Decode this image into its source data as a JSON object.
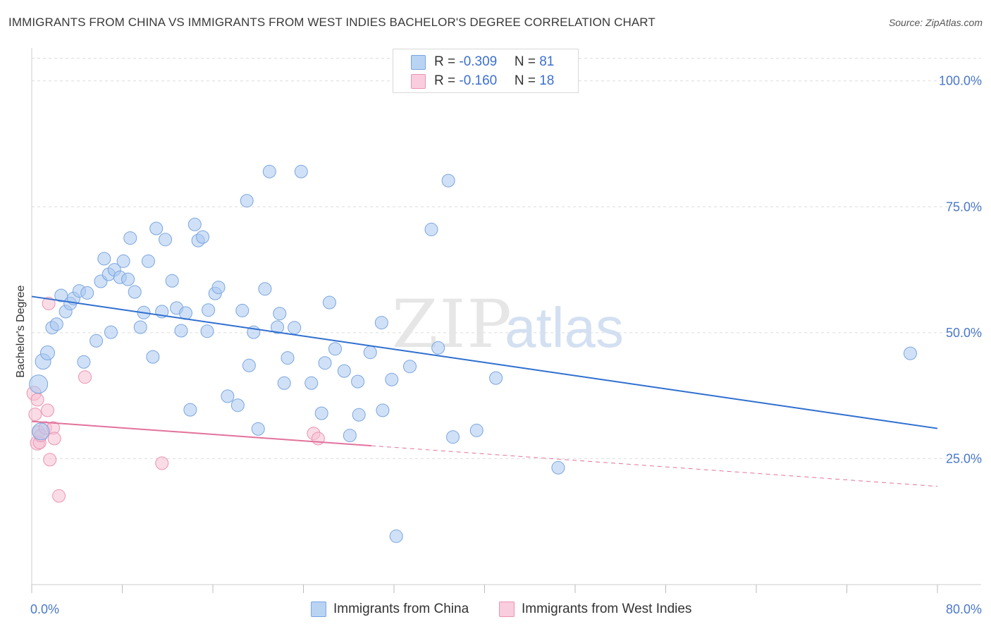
{
  "title": "IMMIGRANTS FROM CHINA VS IMMIGRANTS FROM WEST INDIES BACHELOR'S DEGREE CORRELATION CHART",
  "source": "Source: ZipAtlas.com",
  "watermark": {
    "zip": "ZIP",
    "atlas": "atlas"
  },
  "legend": {
    "china": {
      "r_label": "R = ",
      "r_value": "-0.309",
      "n_label": "N = ",
      "n_value": "81"
    },
    "westindies": {
      "r_label": "R = ",
      "r_value": "-0.160",
      "n_label": "N = ",
      "n_value": "18"
    }
  },
  "bottom_legend": {
    "china": "Immigrants from China",
    "westindies": "Immigrants from West Indies"
  },
  "colors": {
    "china_fill": "#a9c8f0",
    "china_stroke": "#7aa5e0",
    "china_line": "#2f6fd0",
    "westindies_fill": "#f6bfd2",
    "westindies_stroke": "#ec93b3",
    "westindies_line": "#e2729d",
    "tick_text": "#4a78c9",
    "grid": "#dcdcdc"
  },
  "chart_data": {
    "type": "scatter",
    "title": "IMMIGRANTS FROM CHINA VS IMMIGRANTS FROM WEST INDIES BACHELOR'S DEGREE CORRELATION CHART",
    "xlabel": "",
    "ylabel": "Bachelor's Degree",
    "xlim": [
      0,
      80
    ],
    "ylim": [
      0,
      105
    ],
    "x_tick_labels": [
      "0.0%",
      "80.0%"
    ],
    "y_ticks": [
      25,
      50,
      75,
      100
    ],
    "y_tick_labels": [
      "25.0%",
      "50.0%",
      "75.0%",
      "100.0%"
    ],
    "grid": true,
    "legend_position": "top-center",
    "series": [
      {
        "name": "Immigrants from China",
        "r": -0.309,
        "n": 81,
        "trend": {
          "x": [
            0,
            80
          ],
          "y": [
            57.2,
            31.0
          ],
          "dashed_from": null
        },
        "points": [
          [
            0.6,
            39.8,
            13
          ],
          [
            0.8,
            30.4,
            12
          ],
          [
            1.0,
            44.3,
            11
          ],
          [
            1.4,
            46.0,
            10
          ],
          [
            1.8,
            51.0,
            9
          ],
          [
            2.2,
            51.7,
            9
          ],
          [
            2.6,
            57.4,
            9
          ],
          [
            3.0,
            54.2,
            9
          ],
          [
            3.4,
            55.8,
            9
          ],
          [
            3.7,
            56.8,
            9
          ],
          [
            4.2,
            58.3,
            9
          ],
          [
            4.6,
            44.2,
            9
          ],
          [
            4.9,
            57.9,
            9
          ],
          [
            5.7,
            48.4,
            9
          ],
          [
            6.1,
            60.2,
            9
          ],
          [
            6.4,
            64.7,
            9
          ],
          [
            6.8,
            61.6,
            9
          ],
          [
            7.0,
            50.1,
            9
          ],
          [
            7.3,
            62.5,
            9
          ],
          [
            7.8,
            61.0,
            9
          ],
          [
            8.1,
            64.2,
            9
          ],
          [
            8.5,
            60.6,
            9
          ],
          [
            8.7,
            68.8,
            9
          ],
          [
            9.1,
            58.1,
            9
          ],
          [
            9.6,
            51.1,
            9
          ],
          [
            9.9,
            54.0,
            9
          ],
          [
            10.3,
            64.2,
            9
          ],
          [
            10.7,
            45.2,
            9
          ],
          [
            11.0,
            70.7,
            9
          ],
          [
            11.5,
            54.2,
            9
          ],
          [
            11.8,
            68.5,
            9
          ],
          [
            12.4,
            60.3,
            9
          ],
          [
            12.8,
            54.9,
            9
          ],
          [
            13.2,
            50.4,
            9
          ],
          [
            13.6,
            53.9,
            9
          ],
          [
            14.0,
            34.7,
            9
          ],
          [
            14.4,
            71.5,
            9
          ],
          [
            14.7,
            68.3,
            9
          ],
          [
            15.1,
            69.0,
            9
          ],
          [
            15.5,
            50.3,
            9
          ],
          [
            15.6,
            54.5,
            9
          ],
          [
            16.2,
            57.8,
            9
          ],
          [
            16.5,
            59.0,
            9
          ],
          [
            17.3,
            37.4,
            9
          ],
          [
            18.2,
            35.6,
            9
          ],
          [
            18.6,
            54.4,
            9
          ],
          [
            19.0,
            76.2,
            9
          ],
          [
            19.2,
            43.5,
            9
          ],
          [
            19.6,
            50.1,
            9
          ],
          [
            20.0,
            30.9,
            9
          ],
          [
            20.6,
            58.7,
            9
          ],
          [
            21.0,
            82.0,
            9
          ],
          [
            21.7,
            51.1,
            9
          ],
          [
            21.9,
            53.8,
            9
          ],
          [
            22.3,
            40.0,
            9
          ],
          [
            22.6,
            45.0,
            9
          ],
          [
            23.2,
            51.0,
            9
          ],
          [
            23.8,
            82.0,
            9
          ],
          [
            24.7,
            40.0,
            9
          ],
          [
            25.6,
            34.0,
            9
          ],
          [
            25.9,
            44.0,
            9
          ],
          [
            26.3,
            56.0,
            9
          ],
          [
            26.8,
            46.8,
            9
          ],
          [
            27.6,
            42.4,
            9
          ],
          [
            28.1,
            29.6,
            9
          ],
          [
            28.8,
            40.3,
            9
          ],
          [
            28.9,
            33.7,
            9
          ],
          [
            29.9,
            46.1,
            9
          ],
          [
            30.9,
            52.0,
            9
          ],
          [
            31.0,
            34.6,
            9
          ],
          [
            31.8,
            40.7,
            9
          ],
          [
            32.2,
            9.6,
            9
          ],
          [
            33.4,
            43.3,
            9
          ],
          [
            35.3,
            70.5,
            9
          ],
          [
            35.9,
            47.0,
            9
          ],
          [
            36.8,
            80.2,
            9
          ],
          [
            37.2,
            29.3,
            9
          ],
          [
            39.3,
            30.6,
            9
          ],
          [
            41.0,
            41.0,
            9
          ],
          [
            46.5,
            23.2,
            9
          ],
          [
            77.6,
            45.9,
            9
          ]
        ]
      },
      {
        "name": "Immigrants from West Indies",
        "r": -0.16,
        "n": 18,
        "trend": {
          "x": [
            0,
            80
          ],
          "y": [
            32.4,
            19.5
          ],
          "dashed_from": 30
        },
        "points": [
          [
            0.2,
            38.0,
            10
          ],
          [
            0.3,
            33.8,
            9
          ],
          [
            0.5,
            36.7,
            9
          ],
          [
            0.5,
            28.1,
            10
          ],
          [
            0.6,
            30.3,
            9
          ],
          [
            0.7,
            28.2,
            9
          ],
          [
            0.8,
            29.6,
            9
          ],
          [
            1.2,
            31.1,
            9
          ],
          [
            1.4,
            34.6,
            9
          ],
          [
            1.5,
            55.8,
            9
          ],
          [
            1.6,
            24.8,
            9
          ],
          [
            1.9,
            31.1,
            9
          ],
          [
            2.0,
            29.0,
            9
          ],
          [
            2.4,
            17.6,
            9
          ],
          [
            4.7,
            41.2,
            9
          ],
          [
            11.5,
            24.1,
            9
          ],
          [
            24.9,
            30.0,
            9
          ],
          [
            25.3,
            29.0,
            9
          ]
        ]
      }
    ]
  }
}
